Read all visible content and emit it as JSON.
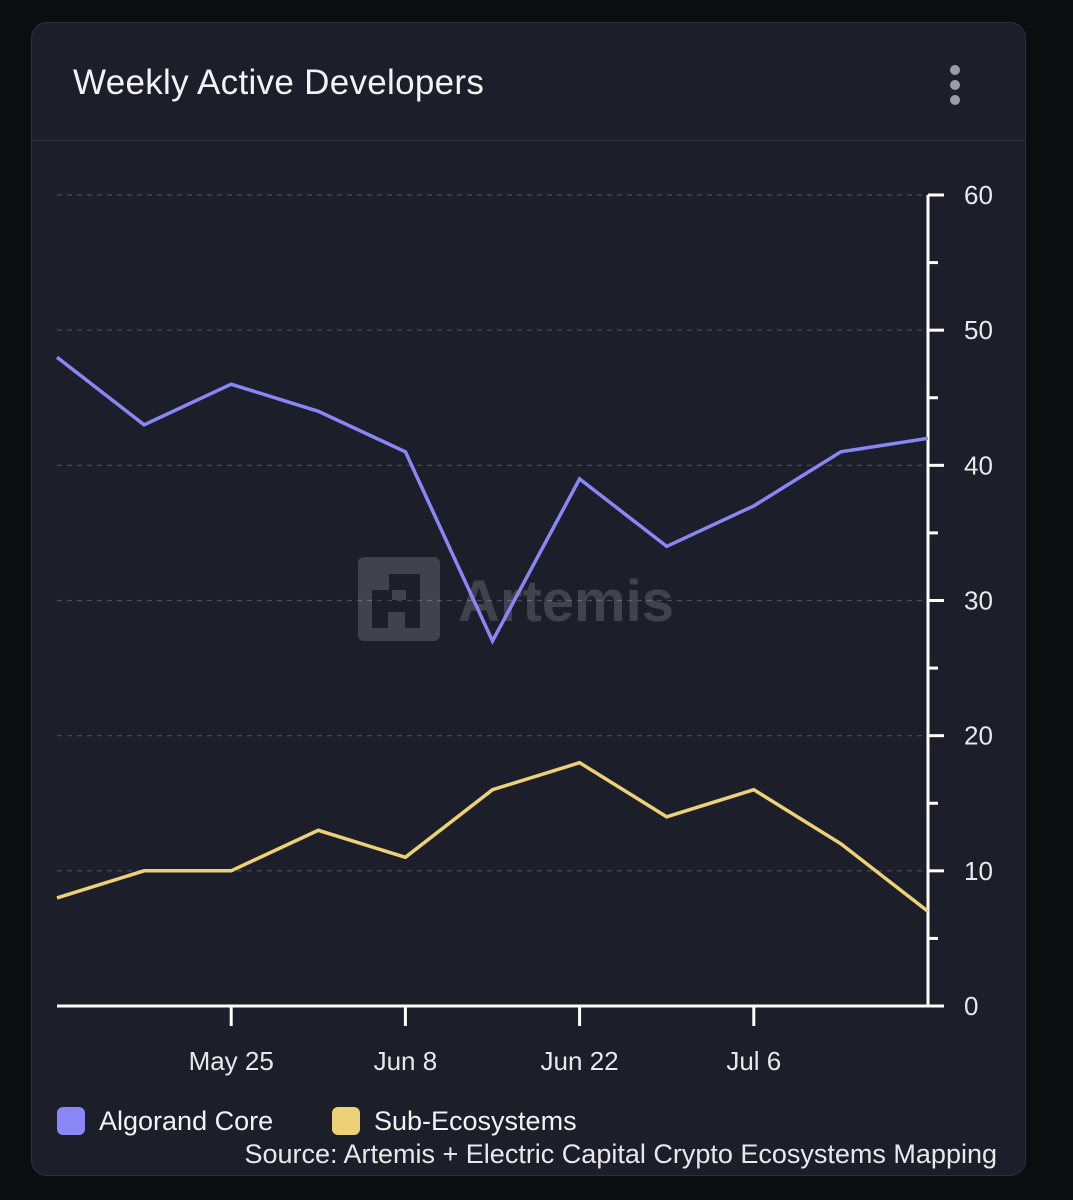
{
  "card": {
    "title": "Weekly Active Developers",
    "menu_icon": "more-vertical-icon"
  },
  "watermark": {
    "text": "Artemis",
    "icon": "artemis-logo-icon"
  },
  "colors": {
    "background": "#0c0d11",
    "card": "#1c1f29",
    "algorand_core": "#8b86f5",
    "sub_ecosystems": "#ecd177",
    "grid": "#4a4e5a",
    "axis": "#ffffff"
  },
  "chart_data": {
    "type": "line",
    "title": "Weekly Active Developers",
    "xlabel": "",
    "ylabel": "",
    "ylim": [
      0,
      60
    ],
    "y_ticks": [
      0,
      10,
      20,
      30,
      40,
      50,
      60
    ],
    "y_axis_position": "right",
    "grid": "horizontal dashed",
    "x": [
      "May 11",
      "May 18",
      "May 25",
      "Jun 1",
      "Jun 8",
      "Jun 15",
      "Jun 22",
      "Jun 29",
      "Jul 6",
      "Jul 13",
      "Jul 20"
    ],
    "x_tick_labels": [
      {
        "index": 2,
        "label": "May 25"
      },
      {
        "index": 4,
        "label": "Jun 8"
      },
      {
        "index": 6,
        "label": "Jun 22"
      },
      {
        "index": 8,
        "label": "Jul 6"
      }
    ],
    "series": [
      {
        "name": "Algorand Core",
        "color": "#8b86f5",
        "values": [
          48,
          43,
          46,
          44,
          41,
          27,
          39,
          34,
          37,
          41,
          42
        ]
      },
      {
        "name": "Sub-Ecosystems",
        "color": "#ecd177",
        "values": [
          8,
          10,
          10,
          13,
          11,
          16,
          18,
          14,
          16,
          12,
          7
        ]
      }
    ],
    "legend": "bottom-left"
  },
  "source": "Source: Artemis + Electric Capital Crypto Ecosystems Mapping"
}
